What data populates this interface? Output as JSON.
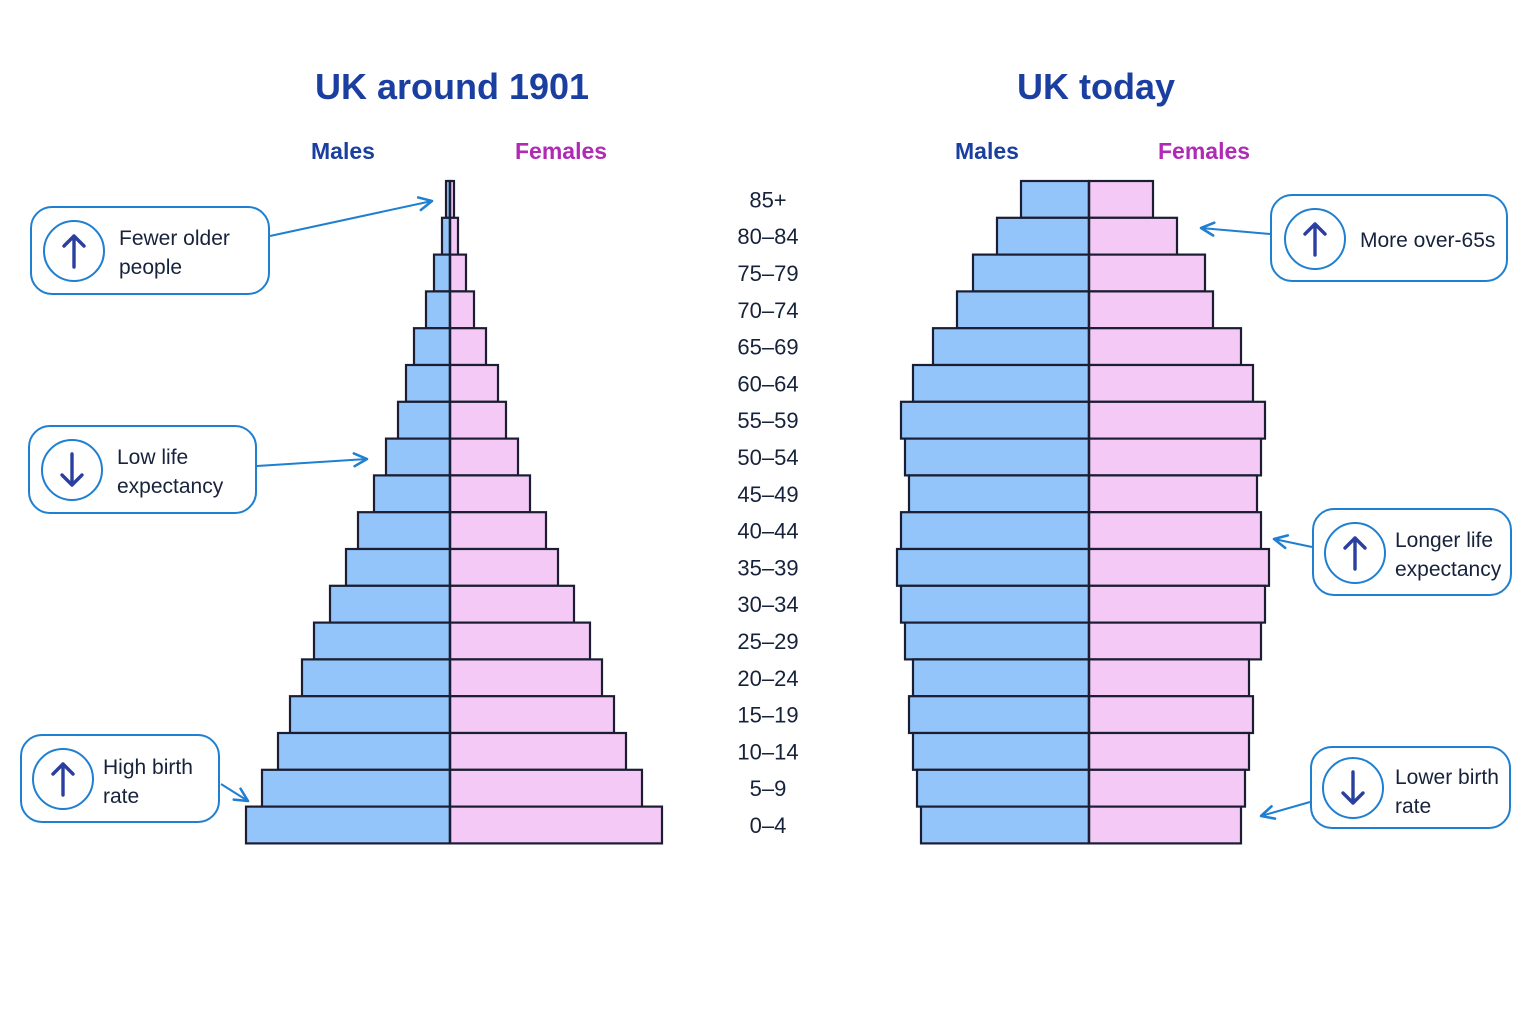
{
  "chart_data": [
    {
      "type": "bar",
      "title": "UK around 1901",
      "left_label": "Males",
      "right_label": "Females",
      "categories": [
        "85+",
        "80-84",
        "75-79",
        "70-74",
        "65-69",
        "60-64",
        "55-59",
        "50-54",
        "45-49",
        "40-44",
        "35-39",
        "30-34",
        "25-29",
        "20-24",
        "15-19",
        "10-14",
        "5-9",
        "0-4"
      ],
      "series": [
        {
          "name": "Males",
          "values": [
            0.1,
            0.2,
            0.4,
            0.6,
            0.9,
            1.1,
            1.3,
            1.6,
            1.9,
            2.3,
            2.6,
            3.0,
            3.4,
            3.7,
            4.0,
            4.3,
            4.7,
            5.1
          ]
        },
        {
          "name": "Females",
          "values": [
            0.1,
            0.2,
            0.4,
            0.6,
            0.9,
            1.2,
            1.4,
            1.7,
            2.0,
            2.4,
            2.7,
            3.1,
            3.5,
            3.8,
            4.1,
            4.4,
            4.8,
            5.3
          ]
        }
      ],
      "scale_max": 6
    },
    {
      "type": "bar",
      "title": "UK today",
      "left_label": "Males",
      "right_label": "Females",
      "categories": [
        "85+",
        "80-84",
        "75-79",
        "70-74",
        "65-69",
        "60-64",
        "55-59",
        "50-54",
        "45-49",
        "40-44",
        "35-39",
        "30-34",
        "25-29",
        "20-24",
        "15-19",
        "10-14",
        "5-9",
        "0-4"
      ],
      "series": [
        {
          "name": "Males",
          "values": [
            1.7,
            2.3,
            2.9,
            3.3,
            3.9,
            4.4,
            4.7,
            4.6,
            4.5,
            4.7,
            4.8,
            4.7,
            4.6,
            4.4,
            4.5,
            4.4,
            4.3,
            4.2
          ]
        },
        {
          "name": "Females",
          "values": [
            1.6,
            2.2,
            2.9,
            3.1,
            3.8,
            4.1,
            4.4,
            4.3,
            4.2,
            4.3,
            4.5,
            4.4,
            4.3,
            4.0,
            4.1,
            4.0,
            3.9,
            3.8
          ]
        }
      ],
      "scale_max": 6
    }
  ],
  "age_labels": [
    "85+",
    "80–84",
    "75–79",
    "70–74",
    "65–69",
    "60–64",
    "55–59",
    "50–54",
    "45–49",
    "40–44",
    "35–39",
    "30–34",
    "25–29",
    "20–24",
    "15–19",
    "10–14",
    "5–9",
    "0–4"
  ],
  "callouts": [
    {
      "id": "fewer-older",
      "text": "Fewer older\npeople",
      "direction": "up"
    },
    {
      "id": "low-life",
      "text": "Low life\nexpectancy",
      "direction": "down"
    },
    {
      "id": "high-birth",
      "text": "High birth\nrate",
      "direction": "up"
    },
    {
      "id": "more-over-65s",
      "text": "More over-65s",
      "direction": "up"
    },
    {
      "id": "longer-life",
      "text": "Longer life\nexpectancy",
      "direction": "up"
    },
    {
      "id": "lower-birth",
      "text": "Lower birth\nrate",
      "direction": "down"
    }
  ],
  "colors": {
    "title": "#1a3fa0",
    "males_label": "#1a3fa0",
    "females_label": "#b02ab5",
    "male_bar": "#93c5fb",
    "female_bar": "#f5c9f6",
    "bar_outline": "#1b1e33",
    "callout_border": "#1f7fd0",
    "arrow_icon": "#2a3fa0"
  }
}
